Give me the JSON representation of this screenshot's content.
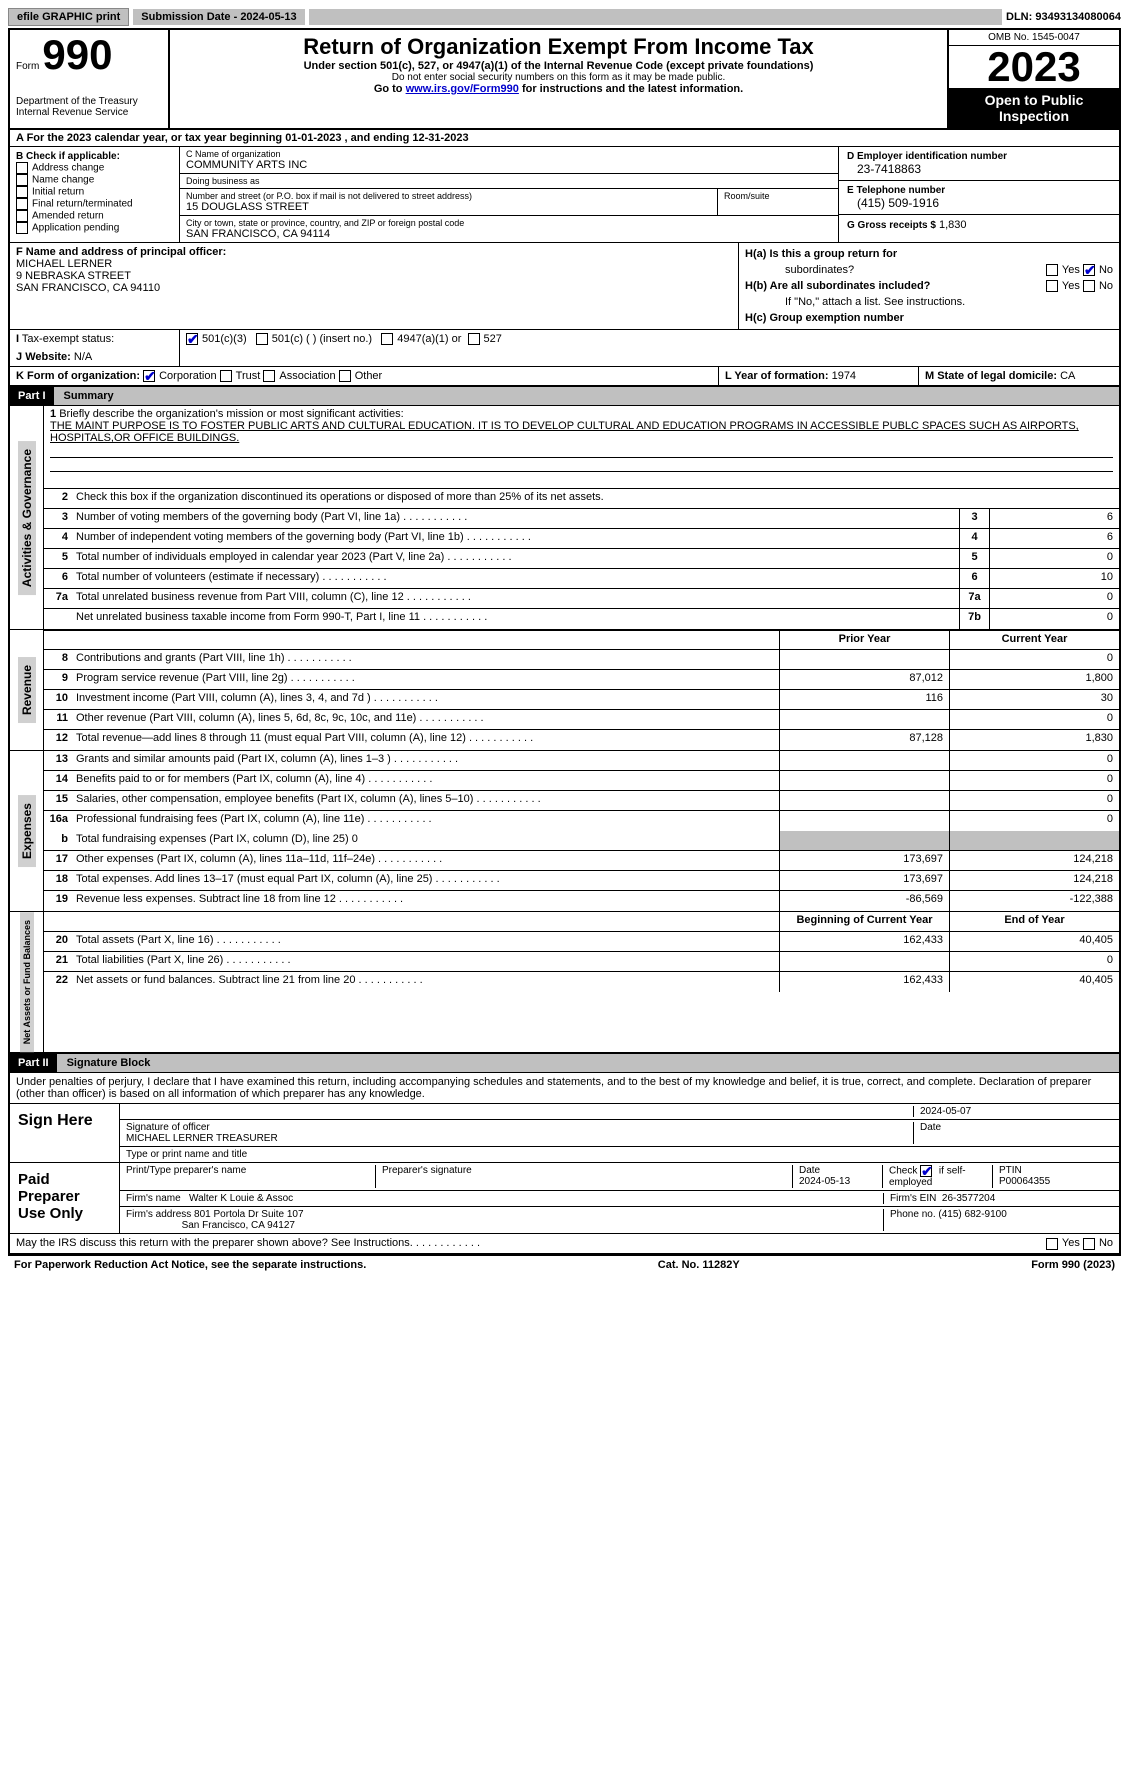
{
  "topbar": {
    "efile": "efile GRAPHIC print",
    "submission_label": "Submission Date - 2024-05-13",
    "dln": "DLN: 93493134080064"
  },
  "header": {
    "form_word": "Form",
    "form_num": "990",
    "dept": "Department of the Treasury",
    "irs": "Internal Revenue Service",
    "title": "Return of Organization Exempt From Income Tax",
    "subtitle": "Under section 501(c), 527, or 4947(a)(1) of the Internal Revenue Code (except private foundations)",
    "ssn_note": "Do not enter social security numbers on this form as it may be made public.",
    "goto_prefix": "Go to ",
    "goto_link": "www.irs.gov/Form990",
    "goto_suffix": " for instructions and the latest information.",
    "omb": "OMB No. 1545-0047",
    "year": "2023",
    "open": "Open to Public Inspection"
  },
  "row_a": "A For the 2023 calendar year, or tax year beginning 01-01-2023   , and ending 12-31-2023",
  "col_b": {
    "label": "B Check if applicable:",
    "items": [
      "Address change",
      "Name change",
      "Initial return",
      "Final return/terminated",
      "Amended return",
      "Application pending"
    ]
  },
  "col_c": {
    "name_label": "C Name of organization",
    "name": "COMMUNITY ARTS INC",
    "dba_label": "Doing business as",
    "dba": "",
    "street_label": "Number and street (or P.O. box if mail is not delivered to street address)",
    "street": "15 DOUGLASS STREET",
    "room_label": "Room/suite",
    "room": "",
    "city_label": "City or town, state or province, country, and ZIP or foreign postal code",
    "city": "SAN FRANCISCO, CA  94114"
  },
  "col_d": {
    "ein_label": "D Employer identification number",
    "ein": "23-7418863",
    "phone_label": "E Telephone number",
    "phone": "(415) 509-1916",
    "gross_label": "G Gross receipts $",
    "gross": "1,830"
  },
  "officer": {
    "label": "F  Name and address of principal officer:",
    "name": "MICHAEL LERNER",
    "street": "9 NEBRASKA STREET",
    "city": "SAN FRANCISCO, CA  94110"
  },
  "h": {
    "ha": "H(a)  Is this a group return for",
    "ha2": "subordinates?",
    "hb": "H(b)  Are all subordinates included?",
    "hb_note": "If \"No,\" attach a list. See instructions.",
    "hc": "H(c)  Group exemption number",
    "yes": "Yes",
    "no": "No"
  },
  "tax_status": {
    "label": "Tax-exempt status:",
    "o501c3": "501(c)(3)",
    "o501c": "501(c) (  ) (insert no.)",
    "o4947": "4947(a)(1) or",
    "o527": "527"
  },
  "website": {
    "label": "Website:",
    "val": "N/A"
  },
  "k": {
    "label": "K Form of organization:",
    "corp": "Corporation",
    "trust": "Trust",
    "assoc": "Association",
    "other": "Other"
  },
  "l": {
    "label": "L Year of formation:",
    "val": "1974"
  },
  "m": {
    "label": "M State of legal domicile:",
    "val": "CA"
  },
  "part1": {
    "label": "Part I",
    "title": "Summary"
  },
  "mission": {
    "label": "Briefly describe the organization's mission or most significant activities:",
    "text": "THE MAINT PURPOSE IS TO FOSTER PUBLIC ARTS AND CULTURAL EDUCATION. IT IS TO DEVELOP CULTURAL AND EDUCATION PROGRAMS IN ACCESSIBLE PUBLC SPACES SUCH AS AIRPORTS, HOSPITALS,OR OFFICE BUILDINGS."
  },
  "summary": {
    "sec_ag": "Activities & Governance",
    "sec_rev": "Revenue",
    "sec_exp": "Expenses",
    "sec_na": "Net Assets or Fund Balances",
    "line2": "Check this box       if the organization discontinued its operations or disposed of more than 25% of its net assets.",
    "lines_ag": [
      {
        "n": "3",
        "d": "Number of voting members of the governing body (Part VI, line 1a)",
        "b": "3",
        "v": "6"
      },
      {
        "n": "4",
        "d": "Number of independent voting members of the governing body (Part VI, line 1b)",
        "b": "4",
        "v": "6"
      },
      {
        "n": "5",
        "d": "Total number of individuals employed in calendar year 2023 (Part V, line 2a)",
        "b": "5",
        "v": "0"
      },
      {
        "n": "6",
        "d": "Total number of volunteers (estimate if necessary)",
        "b": "6",
        "v": "10"
      },
      {
        "n": "7a",
        "d": "Total unrelated business revenue from Part VIII, column (C), line 12",
        "b": "7a",
        "v": "0"
      },
      {
        "n": "",
        "d": "Net unrelated business taxable income from Form 990-T, Part I, line 11",
        "b": "7b",
        "v": "0"
      }
    ],
    "col_prior": "Prior Year",
    "col_current": "Current Year",
    "lines_rev": [
      {
        "n": "8",
        "d": "Contributions and grants (Part VIII, line 1h)",
        "p": "",
        "c": "0"
      },
      {
        "n": "9",
        "d": "Program service revenue (Part VIII, line 2g)",
        "p": "87,012",
        "c": "1,800"
      },
      {
        "n": "10",
        "d": "Investment income (Part VIII, column (A), lines 3, 4, and 7d )",
        "p": "116",
        "c": "30"
      },
      {
        "n": "11",
        "d": "Other revenue (Part VIII, column (A), lines 5, 6d, 8c, 9c, 10c, and 11e)",
        "p": "",
        "c": "0"
      },
      {
        "n": "12",
        "d": "Total revenue—add lines 8 through 11 (must equal Part VIII, column (A), line 12)",
        "p": "87,128",
        "c": "1,830"
      }
    ],
    "lines_exp": [
      {
        "n": "13",
        "d": "Grants and similar amounts paid (Part IX, column (A), lines 1–3 )",
        "p": "",
        "c": "0"
      },
      {
        "n": "14",
        "d": "Benefits paid to or for members (Part IX, column (A), line 4)",
        "p": "",
        "c": "0"
      },
      {
        "n": "15",
        "d": "Salaries, other compensation, employee benefits (Part IX, column (A), lines 5–10)",
        "p": "",
        "c": "0"
      },
      {
        "n": "16a",
        "d": "Professional fundraising fees (Part IX, column (A), line 11e)",
        "p": "",
        "c": "0"
      }
    ],
    "line16b": {
      "n": "b",
      "d": "Total fundraising expenses (Part IX, column (D), line 25) 0"
    },
    "lines_exp2": [
      {
        "n": "17",
        "d": "Other expenses (Part IX, column (A), lines 11a–11d, 11f–24e)",
        "p": "173,697",
        "c": "124,218"
      },
      {
        "n": "18",
        "d": "Total expenses. Add lines 13–17 (must equal Part IX, column (A), line 25)",
        "p": "173,697",
        "c": "124,218"
      },
      {
        "n": "19",
        "d": "Revenue less expenses. Subtract line 18 from line 12",
        "p": "-86,569",
        "c": "-122,388"
      }
    ],
    "col_begin": "Beginning of Current Year",
    "col_end": "End of Year",
    "lines_na": [
      {
        "n": "20",
        "d": "Total assets (Part X, line 16)",
        "p": "162,433",
        "c": "40,405"
      },
      {
        "n": "21",
        "d": "Total liabilities (Part X, line 26)",
        "p": "",
        "c": "0"
      },
      {
        "n": "22",
        "d": "Net assets or fund balances. Subtract line 21 from line 20",
        "p": "162,433",
        "c": "40,405"
      }
    ]
  },
  "part2": {
    "label": "Part II",
    "title": "Signature Block"
  },
  "perjury": "Under penalties of perjury, I declare that I have examined this return, including accompanying schedules and statements, and to the best of my knowledge and belief, it is true, correct, and complete. Declaration of preparer (other than officer) is based on all information of which preparer has any knowledge.",
  "sign": {
    "here": "Sign Here",
    "sig_officer": "Signature of officer",
    "officer_name": "MICHAEL LERNER TREASURER",
    "type_name": "Type or print name and title",
    "date": "Date",
    "date_val": "2024-05-07"
  },
  "preparer": {
    "label": "Paid Preparer Use Only",
    "print_name": "Print/Type preparer's name",
    "sig": "Preparer's signature",
    "date_label": "Date",
    "date_val": "2024-05-13",
    "check_label": "Check",
    "self_emp": "if self-employed",
    "ptin_label": "PTIN",
    "ptin": "P00064355",
    "firm_name_label": "Firm's name",
    "firm_name": "Walter K Louie & Assoc",
    "firm_ein_label": "Firm's EIN",
    "firm_ein": "26-3577204",
    "firm_addr_label": "Firm's address",
    "firm_addr1": "801 Portola Dr Suite 107",
    "firm_addr2": "San Francisco, CA  94127",
    "phone_label": "Phone no.",
    "phone": "(415) 682-9100"
  },
  "discuss": "May the IRS discuss this return with the preparer shown above? See Instructions.",
  "footer": {
    "pra": "For Paperwork Reduction Act Notice, see the separate instructions.",
    "cat": "Cat. No. 11282Y",
    "form": "Form 990 (2023)"
  }
}
